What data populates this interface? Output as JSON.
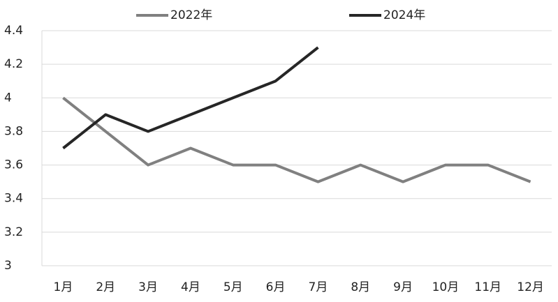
{
  "chart_data": {
    "type": "line",
    "categories": [
      "1月",
      "2月",
      "3月",
      "4月",
      "5月",
      "6月",
      "7月",
      "8月",
      "9月",
      "10月",
      "11月",
      "12月"
    ],
    "series": [
      {
        "name": "2022年",
        "color": "#808080",
        "values": [
          4.0,
          3.8,
          3.6,
          3.7,
          3.6,
          3.6,
          3.5,
          3.6,
          3.5,
          3.6,
          3.6,
          3.5
        ]
      },
      {
        "name": "2024年",
        "color": "#262626",
        "values": [
          3.7,
          3.9,
          3.8,
          3.9,
          4.0,
          4.1,
          4.3,
          null,
          null,
          null,
          null,
          null
        ]
      }
    ],
    "ylim": [
      3,
      4.4
    ],
    "yticks": [
      3,
      3.2,
      3.4,
      3.6,
      3.8,
      4,
      4.2,
      4.4
    ],
    "grid": true,
    "legend": "top"
  }
}
